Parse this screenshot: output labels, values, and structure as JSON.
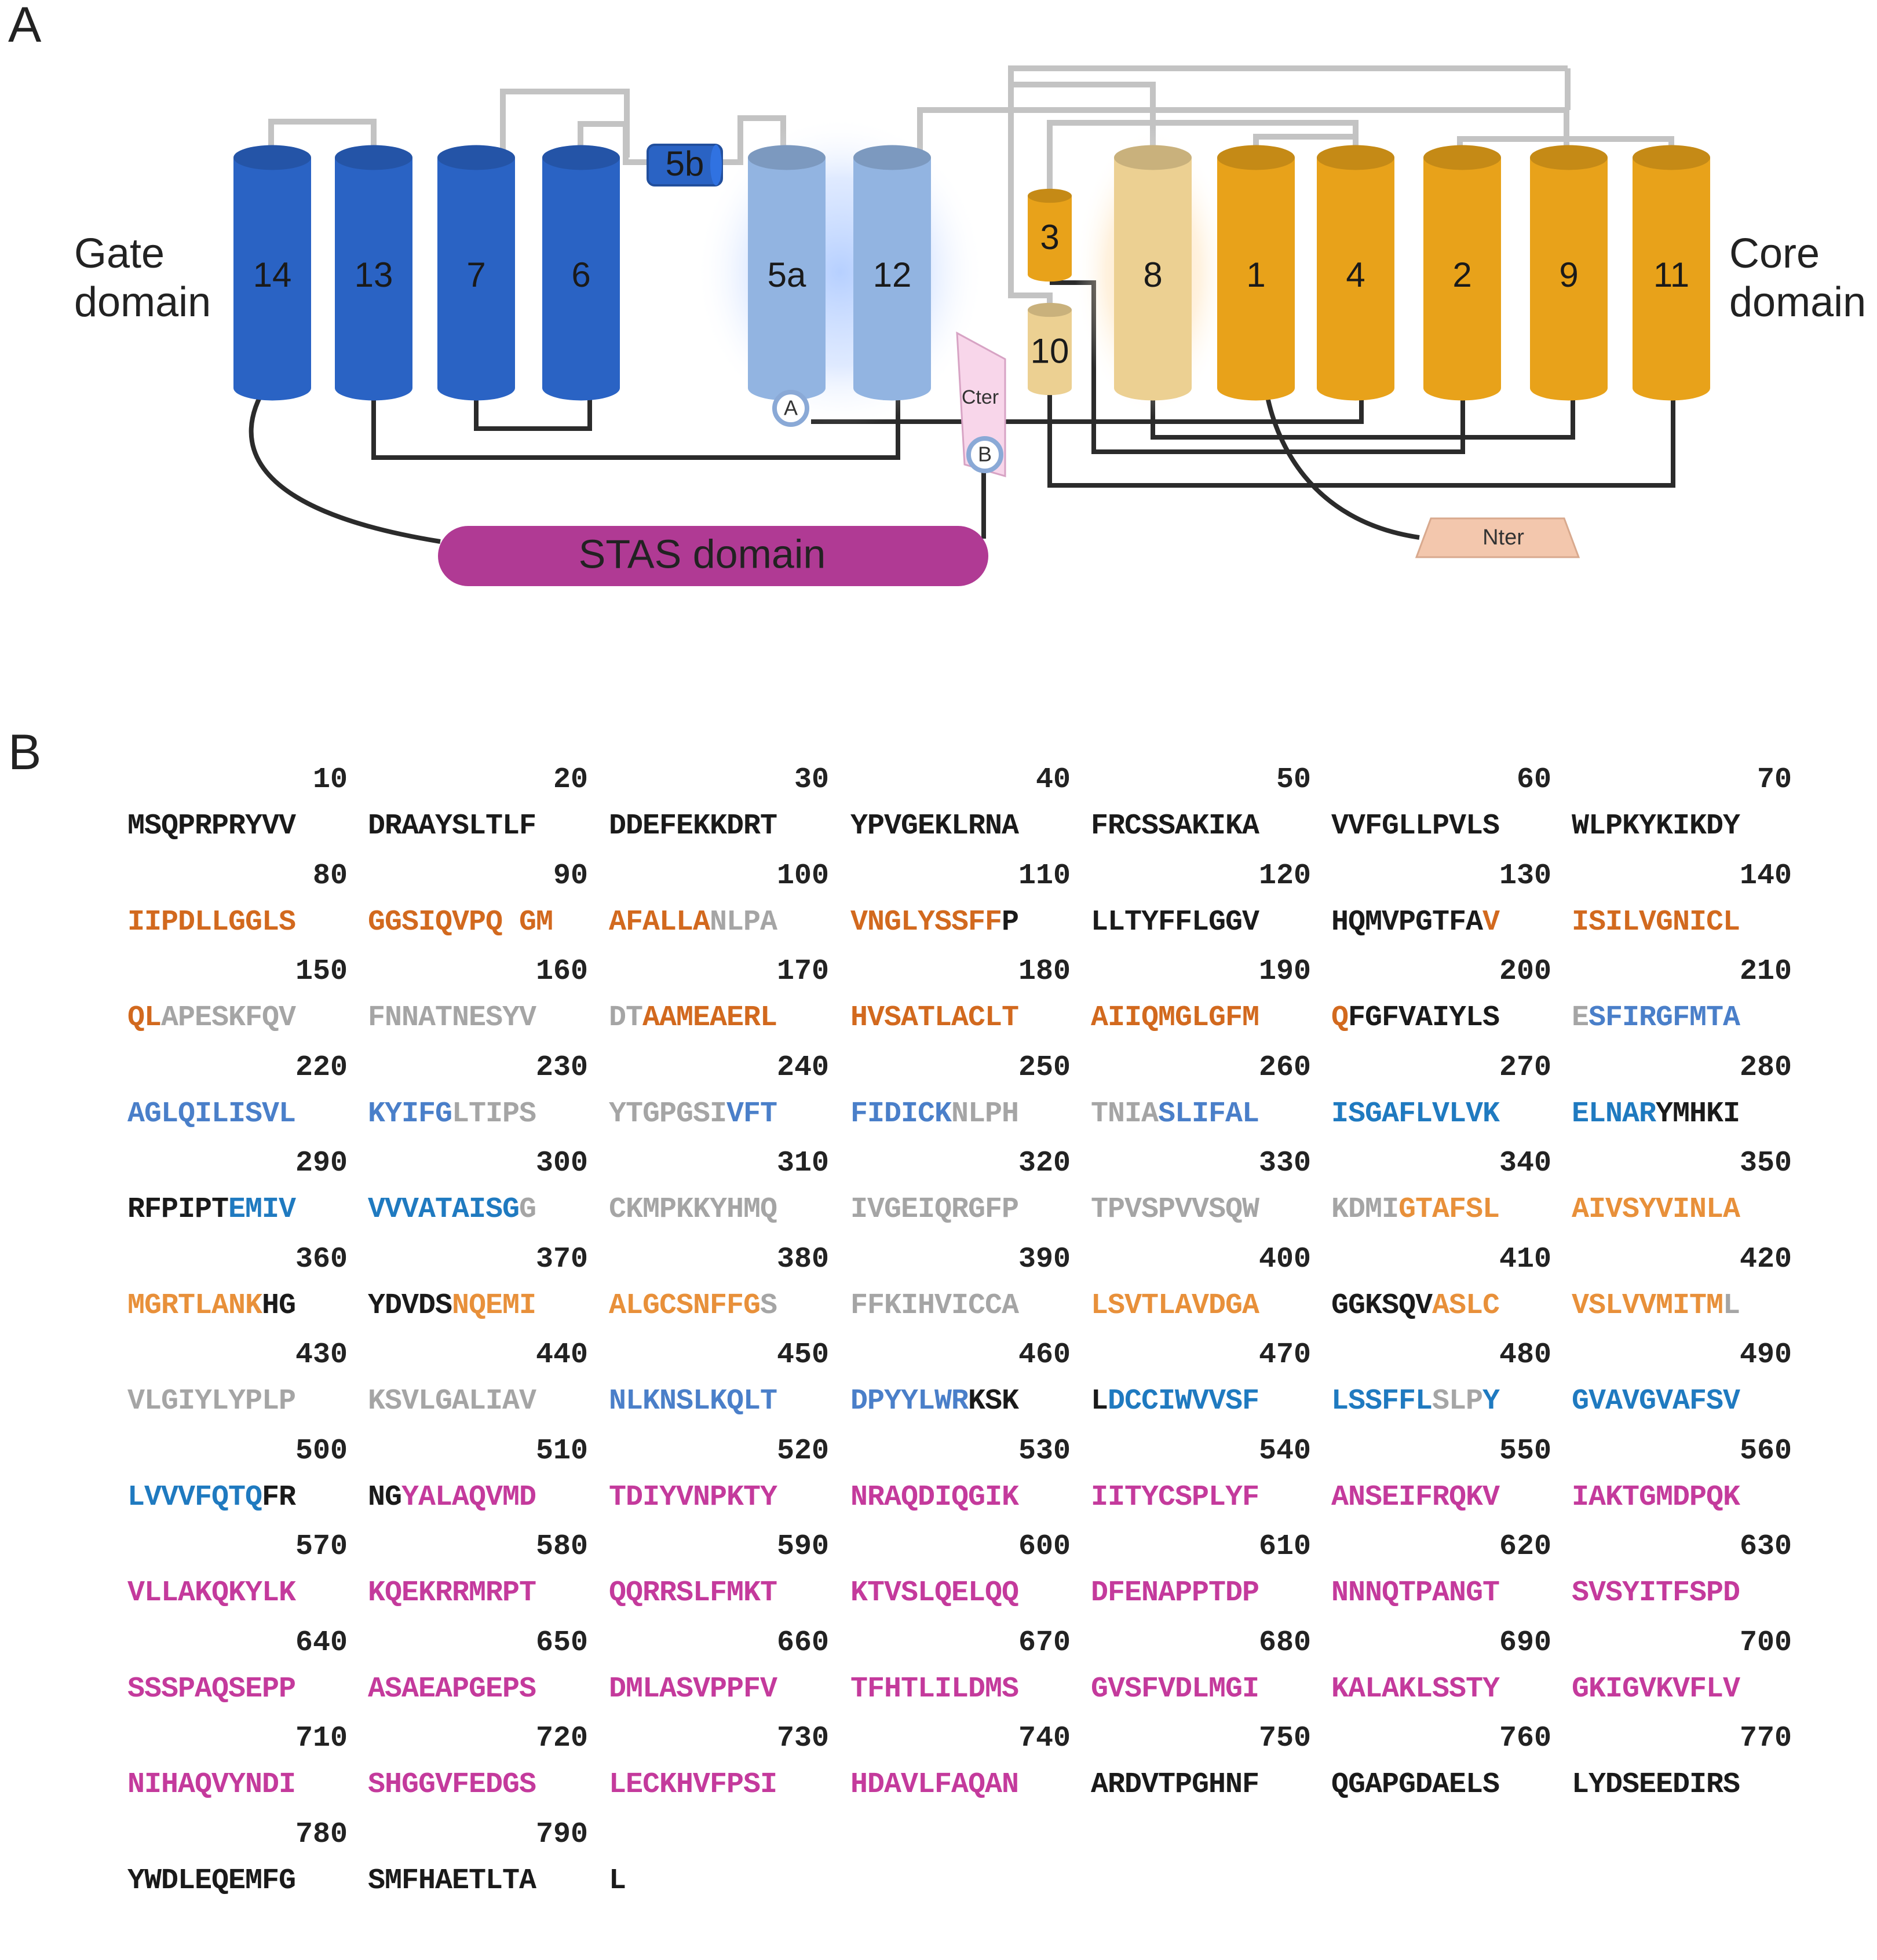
{
  "panels": {
    "a": "A",
    "b": "B"
  },
  "diagram": {
    "gate_label": [
      "Gate",
      "domain"
    ],
    "core_label": [
      "Core",
      "domain"
    ],
    "stas_label": "STAS domain",
    "nter_label": "Nter",
    "cter_label": "Cter",
    "marker_a": "A",
    "marker_b": "B",
    "colors": {
      "gate": "#2a63c4",
      "gate_light": "#92b4e1",
      "core": "#e8a21a",
      "core_light": "#ecd092",
      "stas": "#b03a94",
      "nter": "#f3c7ad",
      "cter": "#f8d6ea"
    },
    "helices": [
      "14",
      "13",
      "7",
      "6",
      "5b",
      "5a",
      "12",
      "3",
      "10",
      "8",
      "1",
      "4",
      "2",
      "9",
      "11"
    ]
  },
  "sequence": {
    "colors": {
      "black": "#1a1a1a",
      "orange": "#d2691e",
      "gray": "#a5a5a5",
      "blue": "#4a7fc9",
      "cyan": "#1f7ac0",
      "magenta": "#c43a9c",
      "lightorange": "#e8903a"
    },
    "rows": [
      [
        {
          "n": "10",
          "s": [
            [
              "MSQPRPRYVV",
              "black"
            ]
          ]
        },
        {
          "n": "20",
          "s": [
            [
              "DRAAYSLTLF",
              "black"
            ]
          ]
        },
        {
          "n": "30",
          "s": [
            [
              "DDEFEKKDRT",
              "black"
            ]
          ]
        },
        {
          "n": "40",
          "s": [
            [
              "YPVGEKLRNA",
              "black"
            ]
          ]
        },
        {
          "n": "50",
          "s": [
            [
              "FRCSSAKIKA",
              "black"
            ]
          ]
        },
        {
          "n": "60",
          "s": [
            [
              "VVFGLLPVLS",
              "black"
            ]
          ]
        },
        {
          "n": "70",
          "s": [
            [
              "WLPKYKIKDY",
              "black"
            ]
          ]
        }
      ],
      [
        {
          "n": "80",
          "s": [
            [
              "IIPDLLGGLS",
              "orange"
            ]
          ]
        },
        {
          "n": "90",
          "s": [
            [
              "GGSIQVPQ GM",
              "orange"
            ]
          ]
        },
        {
          "n": "100",
          "s": [
            [
              "AFALLA",
              "orange"
            ],
            [
              "NLPA",
              "gray"
            ]
          ]
        },
        {
          "n": "110",
          "s": [
            [
              "VNGLYSSFF",
              "orange"
            ],
            [
              "P",
              "black"
            ]
          ]
        },
        {
          "n": "120",
          "s": [
            [
              "LLTYFFLGGV",
              "black"
            ]
          ]
        },
        {
          "n": "130",
          "s": [
            [
              "HQMVPGTFA",
              "black"
            ],
            [
              "V",
              "orange"
            ]
          ]
        },
        {
          "n": "140",
          "s": [
            [
              "ISILVGNICL",
              "orange"
            ]
          ]
        }
      ],
      [
        {
          "n": "150",
          "s": [
            [
              "QL",
              "orange"
            ],
            [
              "APESKFQV",
              "gray"
            ]
          ]
        },
        {
          "n": "160",
          "s": [
            [
              "FNNATNESYV",
              "gray"
            ]
          ]
        },
        {
          "n": "170",
          "s": [
            [
              "DT",
              "gray"
            ],
            [
              "AAMEAERL",
              "orange"
            ]
          ]
        },
        {
          "n": "180",
          "s": [
            [
              "HVSATLACLT",
              "orange"
            ]
          ]
        },
        {
          "n": "190",
          "s": [
            [
              "AIIQMGLGFM",
              "orange"
            ]
          ]
        },
        {
          "n": "200",
          "s": [
            [
              "Q",
              "orange"
            ],
            [
              "FGFVAIYLS",
              "black"
            ]
          ]
        },
        {
          "n": "210",
          "s": [
            [
              "E",
              "gray"
            ],
            [
              "SFIRGFMTA",
              "blue"
            ]
          ]
        }
      ],
      [
        {
          "n": "220",
          "s": [
            [
              "AGLQILISVL",
              "blue"
            ]
          ]
        },
        {
          "n": "230",
          "s": [
            [
              "KYIFG",
              "blue"
            ],
            [
              "LTIPS",
              "gray"
            ]
          ]
        },
        {
          "n": "240",
          "s": [
            [
              "YTGPGSI",
              "gray"
            ],
            [
              "VFT",
              "blue"
            ]
          ]
        },
        {
          "n": "250",
          "s": [
            [
              "FIDICK",
              "blue"
            ],
            [
              "NLPH",
              "gray"
            ]
          ]
        },
        {
          "n": "260",
          "s": [
            [
              "TNIA",
              "gray"
            ],
            [
              "SLIFAL",
              "blue"
            ]
          ]
        },
        {
          "n": "270",
          "s": [
            [
              "ISGAFLVLVK",
              "cyan"
            ]
          ]
        },
        {
          "n": "280",
          "s": [
            [
              "ELNAR",
              "cyan"
            ],
            [
              "YMHKI",
              "black"
            ]
          ]
        }
      ],
      [
        {
          "n": "290",
          "s": [
            [
              "RFPIPT",
              "black"
            ],
            [
              "EMIV",
              "cyan"
            ]
          ]
        },
        {
          "n": "300",
          "s": [
            [
              "VVVATAISG",
              "cyan"
            ],
            [
              "G",
              "gray"
            ]
          ]
        },
        {
          "n": "310",
          "s": [
            [
              "CKMPKKYHMQ",
              "gray"
            ]
          ]
        },
        {
          "n": "320",
          "s": [
            [
              "IVGEIQRGFP",
              "gray"
            ]
          ]
        },
        {
          "n": "330",
          "s": [
            [
              "TPVSPVVSQW",
              "gray"
            ]
          ]
        },
        {
          "n": "340",
          "s": [
            [
              "KDMI",
              "gray"
            ],
            [
              "GTAFSL",
              "lightorange"
            ]
          ]
        },
        {
          "n": "350",
          "s": [
            [
              "AIVSYVINLA",
              "lightorange"
            ]
          ]
        }
      ],
      [
        {
          "n": "360",
          "s": [
            [
              "MGRTLANK",
              "lightorange"
            ],
            [
              "HG",
              "black"
            ]
          ]
        },
        {
          "n": "370",
          "s": [
            [
              "YDVDS",
              "black"
            ],
            [
              "NQEMI",
              "lightorange"
            ]
          ]
        },
        {
          "n": "380",
          "s": [
            [
              "ALGCSNFFG",
              "lightorange"
            ],
            [
              "S",
              "gray"
            ]
          ]
        },
        {
          "n": "390",
          "s": [
            [
              "FFKIHVICCA",
              "gray"
            ]
          ]
        },
        {
          "n": "400",
          "s": [
            [
              "LSVTLAVDGA",
              "lightorange"
            ]
          ]
        },
        {
          "n": "410",
          "s": [
            [
              "GGKSQV",
              "black"
            ],
            [
              "ASLC",
              "lightorange"
            ]
          ]
        },
        {
          "n": "420",
          "s": [
            [
              "VSLVVMITM",
              "lightorange"
            ],
            [
              "L",
              "gray"
            ]
          ]
        }
      ],
      [
        {
          "n": "430",
          "s": [
            [
              "VLGIYLYPLP",
              "gray"
            ]
          ]
        },
        {
          "n": "440",
          "s": [
            [
              "KSVLGALIAV",
              "gray"
            ]
          ]
        },
        {
          "n": "450",
          "s": [
            [
              "NLKNSLKQLT",
              "blue"
            ]
          ]
        },
        {
          "n": "460",
          "s": [
            [
              "DPYYLWR",
              "blue"
            ],
            [
              "KSK",
              "black"
            ]
          ]
        },
        {
          "n": "470",
          "s": [
            [
              "L",
              "black"
            ],
            [
              "DCCIWVVSF",
              "cyan"
            ]
          ]
        },
        {
          "n": "480",
          "s": [
            [
              "LSSFFL",
              "cyan"
            ],
            [
              "SLP",
              "gray"
            ],
            [
              "Y",
              "cyan"
            ]
          ]
        },
        {
          "n": "490",
          "s": [
            [
              "GVAVGVAFSV",
              "cyan"
            ]
          ]
        }
      ],
      [
        {
          "n": "500",
          "s": [
            [
              "LVVVFQTQ",
              "cyan"
            ],
            [
              "FR",
              "black"
            ]
          ]
        },
        {
          "n": "510",
          "s": [
            [
              "NG",
              "black"
            ],
            [
              "YALAQVMD",
              "magenta"
            ]
          ]
        },
        {
          "n": "520",
          "s": [
            [
              "TDIYVNPKTY",
              "magenta"
            ]
          ]
        },
        {
          "n": "530",
          "s": [
            [
              "NRAQDIQGIK",
              "magenta"
            ]
          ]
        },
        {
          "n": "540",
          "s": [
            [
              "IITYCSPLYF",
              "magenta"
            ]
          ]
        },
        {
          "n": "550",
          "s": [
            [
              "ANSEIFRQKV",
              "magenta"
            ]
          ]
        },
        {
          "n": "560",
          "s": [
            [
              "IAKTGMDPQK",
              "magenta"
            ]
          ]
        }
      ],
      [
        {
          "n": "570",
          "s": [
            [
              "VLLAKQKYLK",
              "magenta"
            ]
          ]
        },
        {
          "n": "580",
          "s": [
            [
              "KQEKRRMRPT",
              "magenta"
            ]
          ]
        },
        {
          "n": "590",
          "s": [
            [
              "QQRRSLFMKT",
              "magenta"
            ]
          ]
        },
        {
          "n": "600",
          "s": [
            [
              "KTVSLQELQQ",
              "magenta"
            ]
          ]
        },
        {
          "n": "610",
          "s": [
            [
              "DFENAPPTDP",
              "magenta"
            ]
          ]
        },
        {
          "n": "620",
          "s": [
            [
              "NNNQTPANGT",
              "magenta"
            ]
          ]
        },
        {
          "n": "630",
          "s": [
            [
              "SVSYITFSPD",
              "magenta"
            ]
          ]
        }
      ],
      [
        {
          "n": "640",
          "s": [
            [
              "SSSPAQSEPP",
              "magenta"
            ]
          ]
        },
        {
          "n": "650",
          "s": [
            [
              "ASAEAPGEPS",
              "magenta"
            ]
          ]
        },
        {
          "n": "660",
          "s": [
            [
              "DMLASVPPFV",
              "magenta"
            ]
          ]
        },
        {
          "n": "670",
          "s": [
            [
              "TFHTLILDMS",
              "magenta"
            ]
          ]
        },
        {
          "n": "680",
          "s": [
            [
              "GVSFVDLMGI",
              "magenta"
            ]
          ]
        },
        {
          "n": "690",
          "s": [
            [
              "KALAKLSSTY",
              "magenta"
            ]
          ]
        },
        {
          "n": "700",
          "s": [
            [
              "GKIGVKVFLV",
              "magenta"
            ]
          ]
        }
      ],
      [
        {
          "n": "710",
          "s": [
            [
              "NIHAQVYNDI",
              "magenta"
            ]
          ]
        },
        {
          "n": "720",
          "s": [
            [
              "SHGGVFEDGS",
              "magenta"
            ]
          ]
        },
        {
          "n": "730",
          "s": [
            [
              "LECKHVFPSI",
              "magenta"
            ]
          ]
        },
        {
          "n": "740",
          "s": [
            [
              "HDAVLFAQAN",
              "magenta"
            ]
          ]
        },
        {
          "n": "750",
          "s": [
            [
              "ARDVTPGHNF",
              "black"
            ]
          ]
        },
        {
          "n": "760",
          "s": [
            [
              "QGAPGDAELS",
              "black"
            ]
          ]
        },
        {
          "n": "770",
          "s": [
            [
              "LYDSEEDIRS",
              "black"
            ]
          ]
        }
      ],
      [
        {
          "n": "780",
          "s": [
            [
              "YWDLEQEMFG",
              "black"
            ]
          ]
        },
        {
          "n": "790",
          "s": [
            [
              "SMFHAETLTA",
              "black"
            ]
          ]
        },
        {
          "n": "",
          "s": [
            [
              "L",
              "black"
            ]
          ]
        }
      ]
    ]
  }
}
